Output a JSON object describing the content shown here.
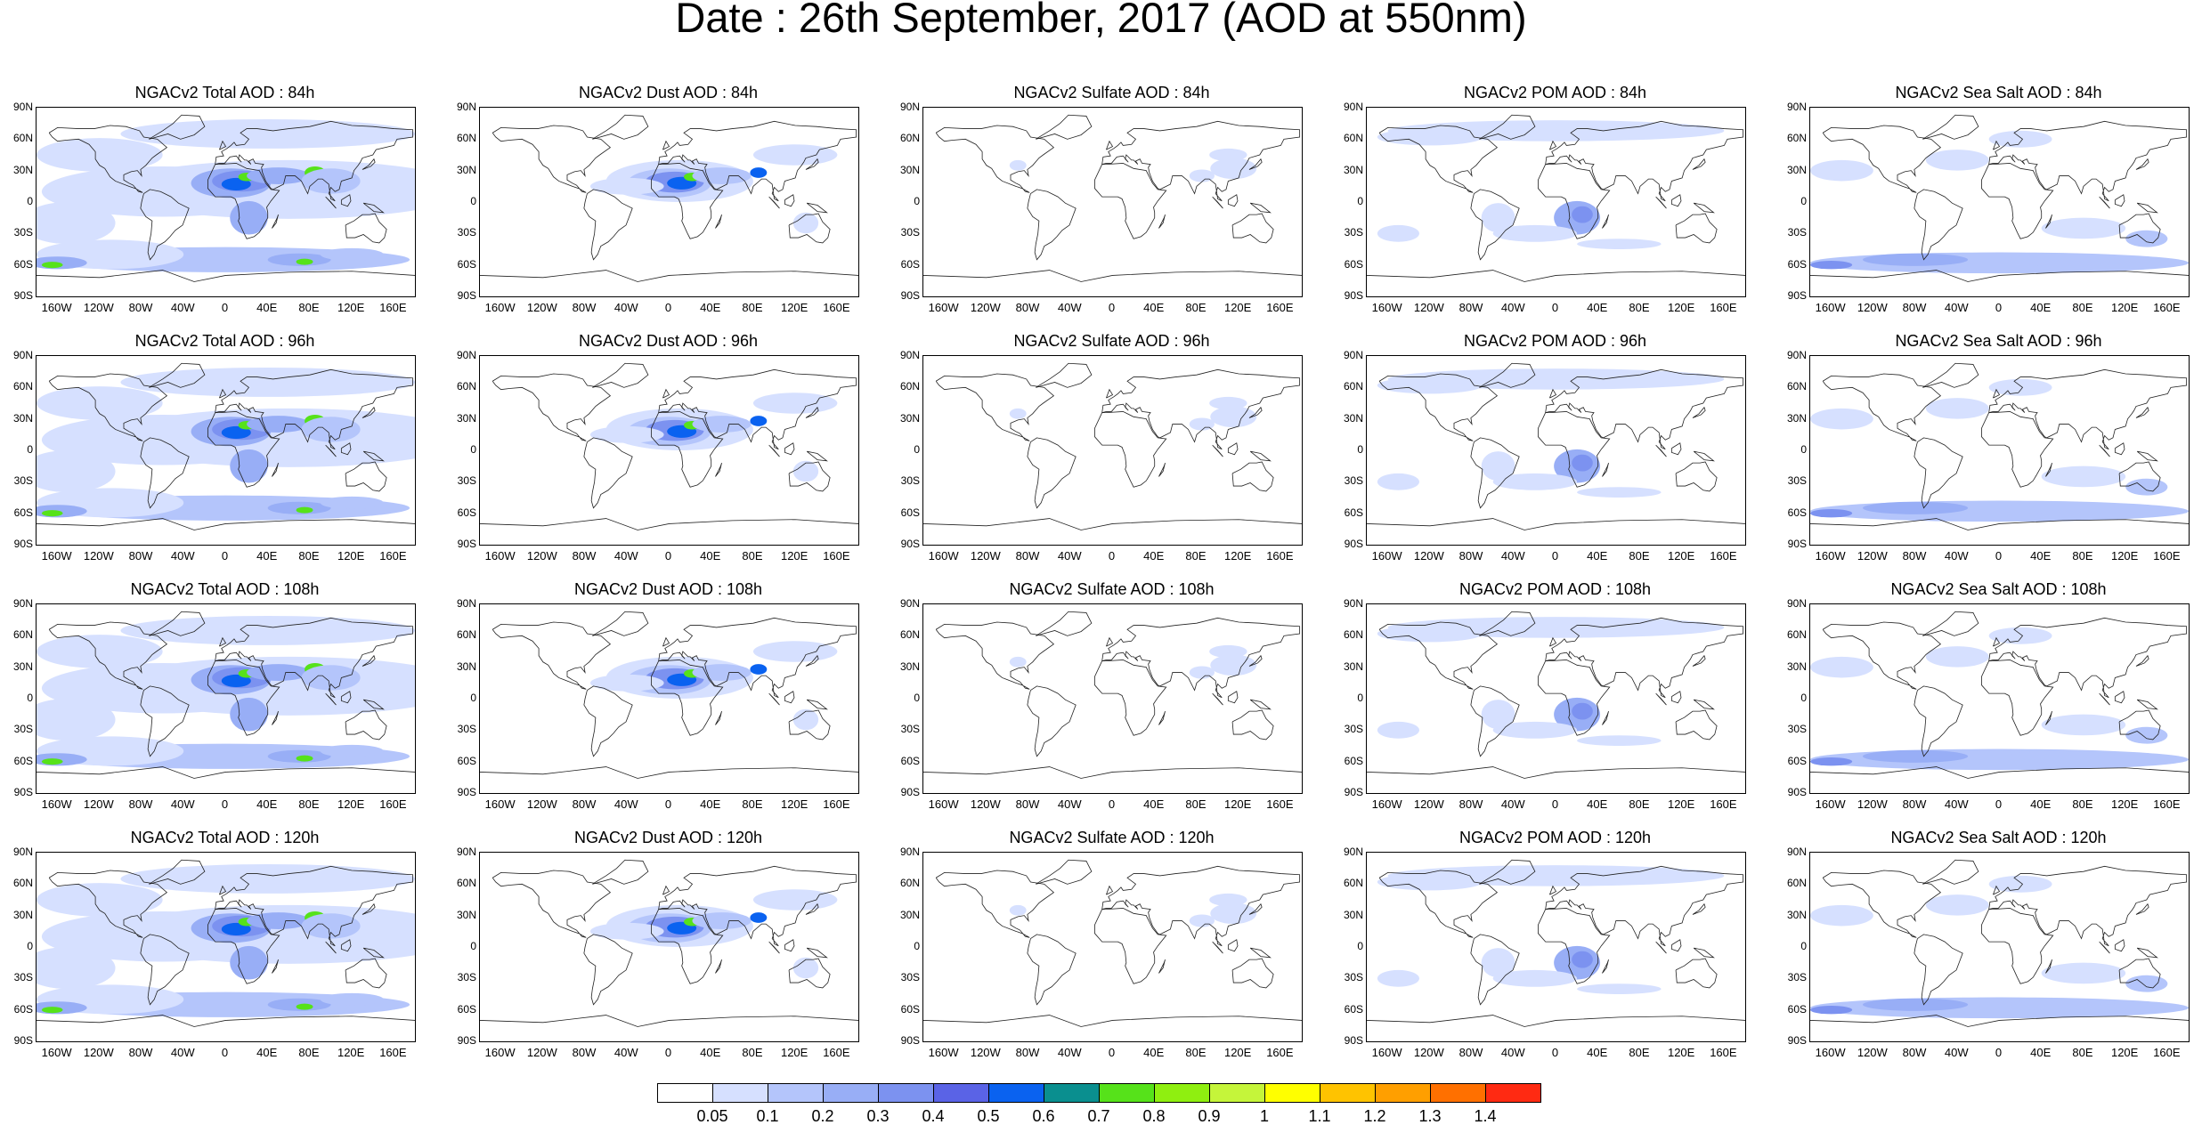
{
  "title": "Date : 26th September, 2017 (AOD at 550nm)",
  "lat_ticks": [
    "90N",
    "60N",
    "30N",
    "0",
    "30S",
    "60S",
    "90S"
  ],
  "lon_ticks": [
    "160W",
    "120W",
    "80W",
    "40W",
    "0",
    "40E",
    "80E",
    "120E",
    "160E"
  ],
  "panels": [
    [
      {
        "title": "NGACv2 Total AOD : 84h",
        "species": "total"
      },
      {
        "title": "NGACv2 Dust AOD : 84h",
        "species": "dust"
      },
      {
        "title": "NGACv2 Sulfate AOD : 84h",
        "species": "sulfate"
      },
      {
        "title": "NGACv2 POM AOD : 84h",
        "species": "pom"
      },
      {
        "title": "NGACv2 Sea Salt AOD : 84h",
        "species": "seasalt"
      }
    ],
    [
      {
        "title": "NGACv2 Total AOD : 96h",
        "species": "total"
      },
      {
        "title": "NGACv2 Dust AOD : 96h",
        "species": "dust"
      },
      {
        "title": "NGACv2 Sulfate AOD : 96h",
        "species": "sulfate"
      },
      {
        "title": "NGACv2 POM AOD : 96h",
        "species": "pom"
      },
      {
        "title": "NGACv2 Sea Salt AOD : 96h",
        "species": "seasalt"
      }
    ],
    [
      {
        "title": "NGACv2 Total AOD : 108h",
        "species": "total"
      },
      {
        "title": "NGACv2 Dust AOD : 108h",
        "species": "dust"
      },
      {
        "title": "NGACv2 Sulfate AOD : 108h",
        "species": "sulfate"
      },
      {
        "title": "NGACv2 POM AOD : 108h",
        "species": "pom"
      },
      {
        "title": "NGACv2 Sea Salt AOD : 108h",
        "species": "seasalt"
      }
    ],
    [
      {
        "title": "NGACv2 Total AOD : 120h",
        "species": "total"
      },
      {
        "title": "NGACv2 Dust AOD : 120h",
        "species": "dust"
      },
      {
        "title": "NGACv2 Sulfate AOD : 120h",
        "species": "sulfate"
      },
      {
        "title": "NGACv2 POM AOD : 120h",
        "species": "pom"
      },
      {
        "title": "NGACv2 Sea Salt  AOD : 120h",
        "species": "seasalt"
      }
    ]
  ],
  "colorbar": {
    "labels": [
      "0.05",
      "0.1",
      "0.2",
      "0.3",
      "0.4",
      "0.5",
      "0.6",
      "0.7",
      "0.8",
      "0.9",
      "1",
      "1.1",
      "1.2",
      "1.3",
      "1.4"
    ],
    "colors": [
      "#ffffff",
      "#d6e0ff",
      "#b4c5fb",
      "#98aef6",
      "#7c92f0",
      "#5a63e6",
      "#0a62f0",
      "#0a8f8f",
      "#56e21a",
      "#8fef10",
      "#c5f53a",
      "#ffff00",
      "#ffc300",
      "#ff9f00",
      "#ff7000",
      "#ff2a12"
    ]
  }
}
